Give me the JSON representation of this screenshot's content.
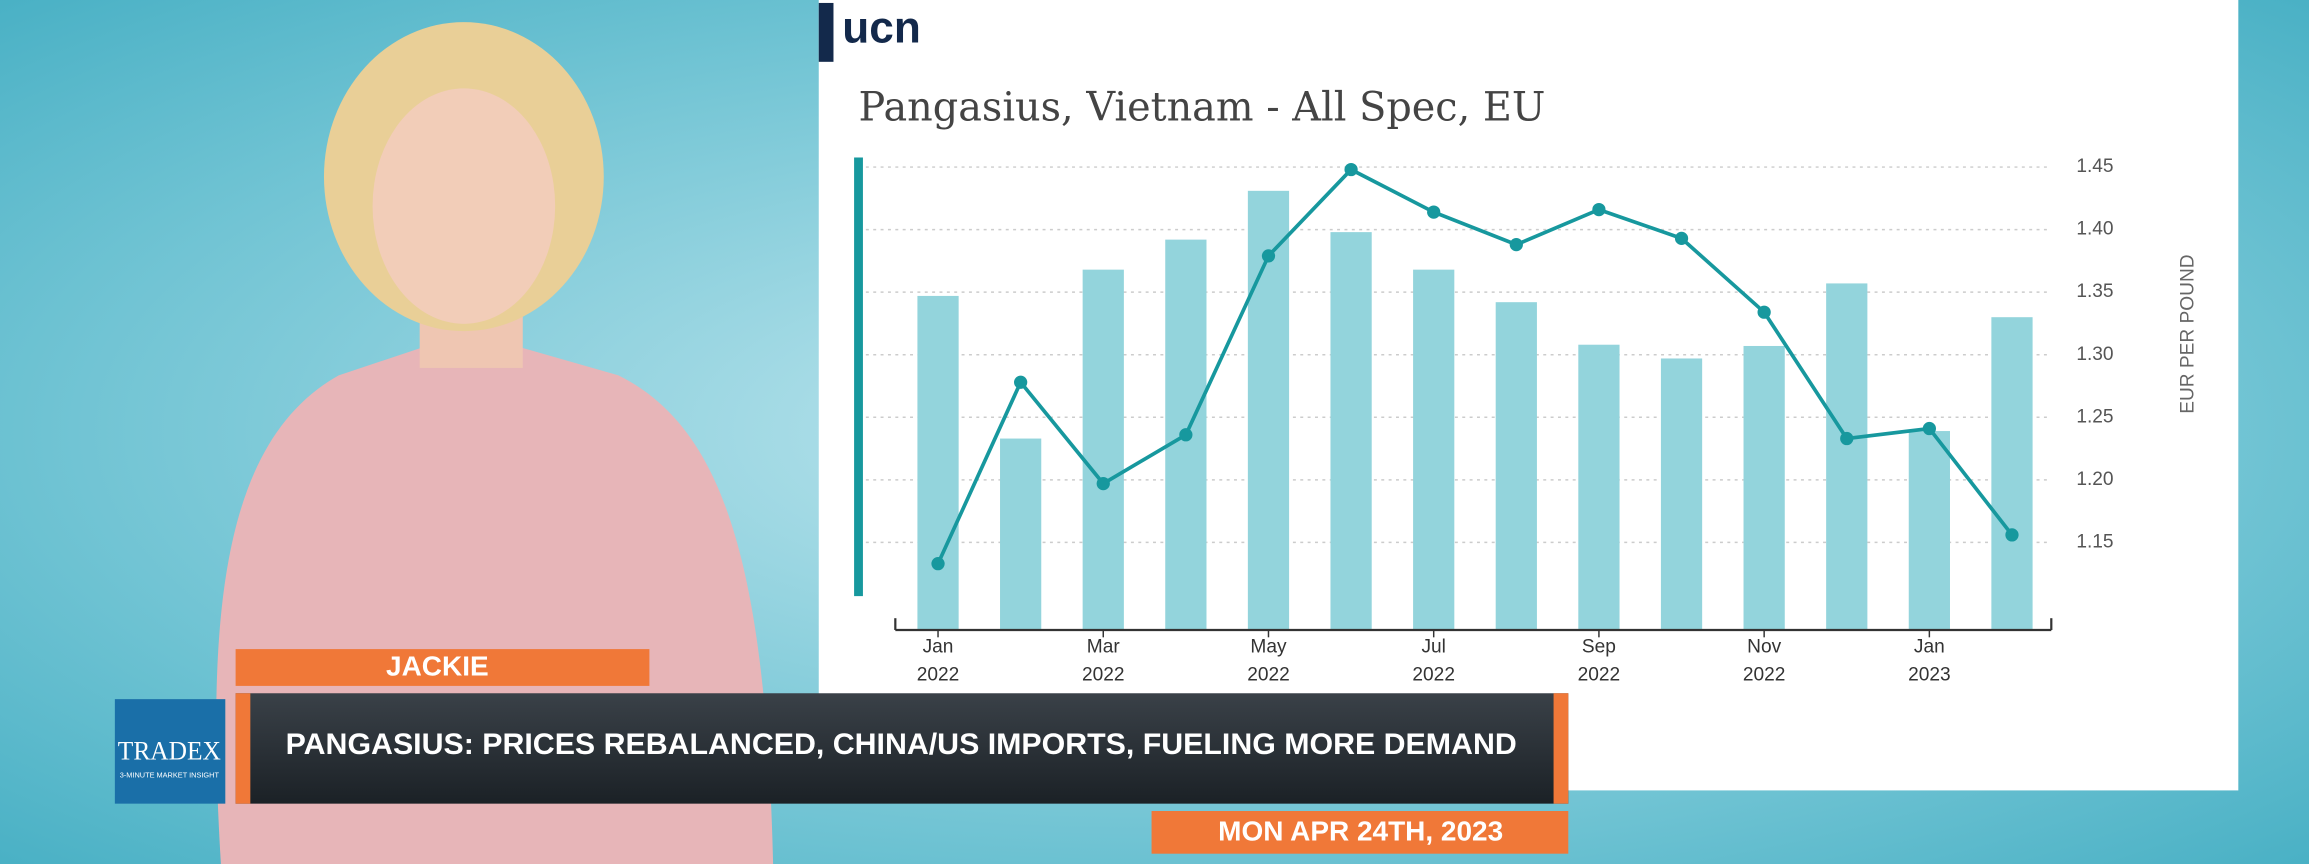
{
  "logo": "ucn",
  "presenter": "JACKIE",
  "headline": "PANGASIUS: PRICES REBALANCED, CHINA/US IMPORTS, FUELING MORE DEMAND",
  "date": "MON APR 24TH, 2023",
  "brand": {
    "name": "TRADEX",
    "tagline": "3-MINUTE MARKET INSIGHT"
  },
  "chart_data": {
    "type": "bar+line",
    "title": "Pangasius, Vietnam - All Spec, EU",
    "y_label": "EUR PER POUND",
    "categories": [
      "Jan",
      null,
      "Mar",
      null,
      "May",
      null,
      "Jul",
      null,
      "Sep",
      null,
      "Nov",
      null,
      "Jan",
      null
    ],
    "category_years": [
      "2022",
      null,
      "2022",
      null,
      "2022",
      null,
      "2022",
      null,
      "2022",
      null,
      "2022",
      null,
      "2023",
      null
    ],
    "series": [
      {
        "type": "bar",
        "color": "#93d4dc",
        "values": [
          1.347,
          1.233,
          1.368,
          1.392,
          1.431,
          1.398,
          1.368,
          1.342,
          1.308,
          1.297,
          1.307,
          1.357,
          1.239,
          1.33
        ]
      },
      {
        "type": "line",
        "color": "#17989e",
        "values": [
          1.133,
          1.278,
          1.197,
          1.236,
          1.379,
          1.448,
          1.414,
          1.388,
          1.416,
          1.393,
          1.334,
          1.233,
          1.241,
          1.156
        ]
      }
    ],
    "ylim": [
      1.08,
      1.46
    ],
    "yticks": [
      1.15,
      {
        "value": 1.2,
        "label": "1.20"
      },
      1.25,
      {
        "value": 1.3,
        "label": "1.30"
      },
      1.35,
      {
        "value": 1.4,
        "label": "1.40"
      },
      1.45
    ],
    "y_axis_side": "right",
    "grid": true
  }
}
